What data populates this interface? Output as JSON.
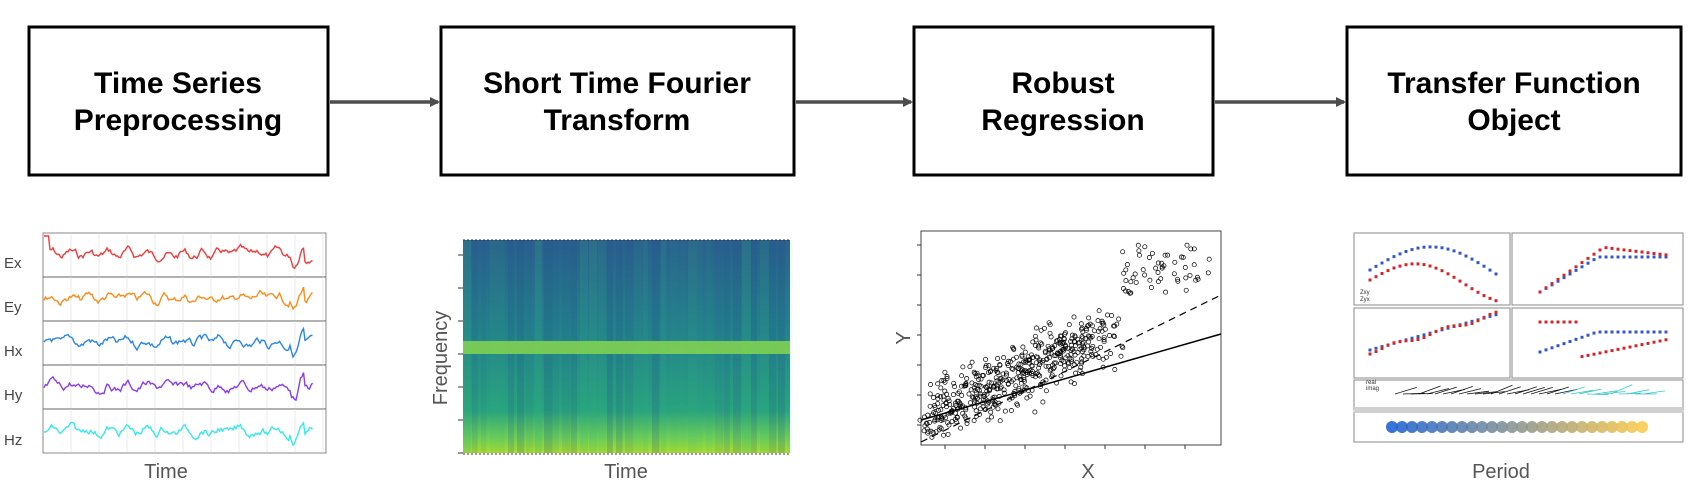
{
  "steps": [
    {
      "line1": "Time Series",
      "line2": "Preprocessing"
    },
    {
      "line1": "Short Time Fourier",
      "line2": "Transform"
    },
    {
      "line1": "Robust",
      "line2": "Regression"
    },
    {
      "line1": "Transfer Function",
      "line2": "Object"
    }
  ],
  "timeseries": {
    "channels": [
      {
        "name": "Ex",
        "color": "#f03c3c"
      },
      {
        "name": "Ey",
        "color": "#ff8c1a"
      },
      {
        "name": "Hx",
        "color": "#2a86e6"
      },
      {
        "name": "Hy",
        "color": "#8a3cf0"
      },
      {
        "name": "Hz",
        "color": "#38e8f0"
      }
    ],
    "xlabel": "Time"
  },
  "spectrogram": {
    "xlabel": "Time",
    "ylabel": "Frequency"
  },
  "regression": {
    "xlabel": "X",
    "ylabel": "Y"
  },
  "transfer": {
    "xlabel": "Period",
    "legend_top": [
      "Zxy",
      "Zyx"
    ],
    "legend_bottom": [
      "real",
      "imag"
    ]
  },
  "colors": {
    "box_border": "#000000",
    "arrow": "#4d4d4d"
  }
}
